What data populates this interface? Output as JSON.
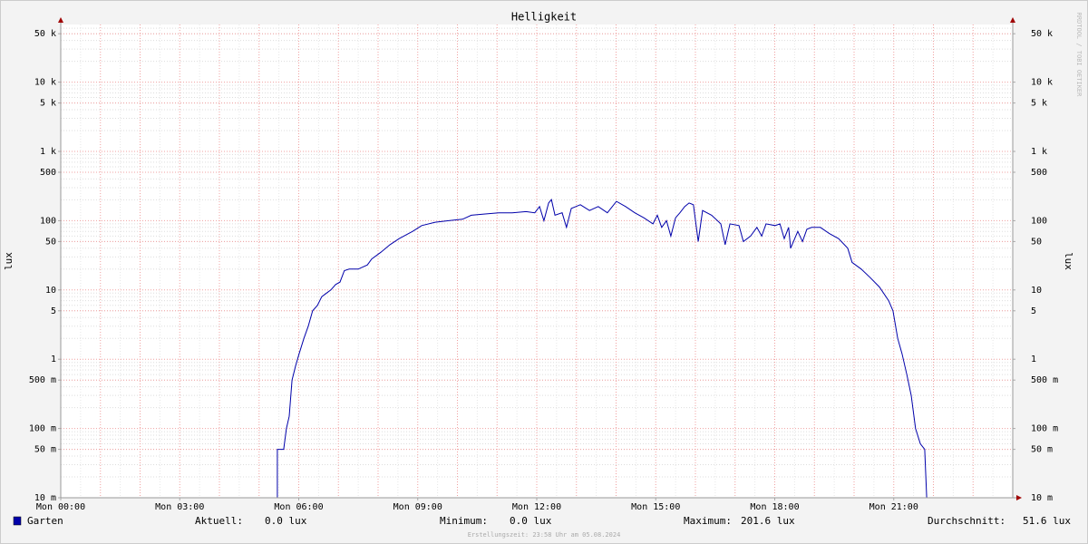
{
  "chart_data": {
    "type": "line",
    "title": "Helligkeit",
    "ylabel": "lux",
    "watermark": "RRDTOOL / TOBI OETIKER",
    "footer": "Erstellungszeit: 23:58 Uhr am 05.08.2024",
    "log_scale": true,
    "grid": true,
    "xlim": [
      0,
      24
    ],
    "xticks": [
      {
        "value": 0,
        "label": "Mon 00:00"
      },
      {
        "value": 3,
        "label": "Mon 03:00"
      },
      {
        "value": 6,
        "label": "Mon 06:00"
      },
      {
        "value": 9,
        "label": "Mon 09:00"
      },
      {
        "value": 12,
        "label": "Mon 12:00"
      },
      {
        "value": 15,
        "label": "Mon 15:00"
      },
      {
        "value": 18,
        "label": "Mon 18:00"
      },
      {
        "value": 21,
        "label": "Mon 21:00"
      }
    ],
    "ylim": [
      0.01,
      68000
    ],
    "yticks": [
      {
        "value": 50000,
        "label": "50 k"
      },
      {
        "value": 10000,
        "label": "10 k"
      },
      {
        "value": 5000,
        "label": "5 k"
      },
      {
        "value": 1000,
        "label": "1 k"
      },
      500,
      100,
      50,
      10,
      5,
      1,
      {
        "value": 0.5,
        "label": "500 m"
      },
      {
        "value": 0.1,
        "label": "100 m"
      },
      {
        "value": 0.05,
        "label": "50 m"
      },
      {
        "value": 0.01,
        "label": "10 m"
      }
    ],
    "x": [
      5.46,
      5.46,
      5.62,
      5.69,
      5.76,
      5.83,
      5.92,
      6.01,
      6.13,
      6.24,
      6.35,
      6.47,
      6.58,
      6.7,
      6.81,
      6.93,
      7.04,
      7.15,
      7.27,
      7.5,
      7.73,
      7.84,
      8.07,
      8.3,
      8.53,
      8.87,
      9.1,
      9.44,
      9.78,
      10.13,
      10.35,
      10.7,
      11.04,
      11.38,
      11.73,
      11.95,
      12.07,
      12.18,
      12.3,
      12.37,
      12.46,
      12.64,
      12.75,
      12.87,
      13.1,
      13.33,
      13.55,
      13.78,
      14.01,
      14.24,
      14.47,
      14.7,
      14.93,
      15.04,
      15.15,
      15.27,
      15.38,
      15.5,
      15.61,
      15.73,
      15.84,
      15.95,
      16.07,
      16.18,
      16.41,
      16.64,
      16.75,
      16.87,
      17.1,
      17.21,
      17.39,
      17.55,
      17.67,
      17.78,
      18.01,
      18.13,
      18.24,
      18.35,
      18.4,
      18.58,
      18.7,
      18.81,
      18.93,
      19.15,
      19.38,
      19.61,
      19.84,
      19.95,
      20.18,
      20.41,
      20.64,
      20.87,
      20.98,
      21.1,
      21.21,
      21.33,
      21.44,
      21.55,
      21.67,
      21.78,
      21.83
    ],
    "series": [
      {
        "name": "Garten",
        "color": "#0000aa",
        "values": [
          0,
          0.05,
          0.05,
          0.1,
          0.15,
          0.5,
          0.8,
          1.2,
          2,
          3,
          5,
          6,
          8,
          9,
          10,
          12,
          13,
          19,
          20,
          20,
          23,
          28,
          35,
          45,
          55,
          70,
          85,
          95,
          100,
          105,
          120,
          125,
          130,
          130,
          135,
          130,
          160,
          100,
          180,
          201.6,
          120,
          130,
          80,
          150,
          170,
          140,
          160,
          130,
          190,
          160,
          130,
          110,
          90,
          120,
          80,
          100,
          60,
          110,
          130,
          160,
          180,
          170,
          50,
          140,
          120,
          90,
          45,
          90,
          85,
          50,
          60,
          80,
          60,
          90,
          85,
          90,
          55,
          80,
          40,
          70,
          50,
          75,
          80,
          80,
          65,
          55,
          40,
          25,
          20,
          15,
          11,
          7,
          5,
          2,
          1.2,
          0.6,
          0.3,
          0.1,
          0.06,
          0.05,
          0
        ]
      }
    ],
    "stats": [
      {
        "label": "Aktuell:",
        "value": "0.0 lux"
      },
      {
        "label": "Minimum:",
        "value": "0.0 lux"
      },
      {
        "label": "Maximum:",
        "value": "201.6 lux"
      },
      {
        "label": "Durchschnitt:",
        "value": "51.6 lux"
      }
    ]
  }
}
